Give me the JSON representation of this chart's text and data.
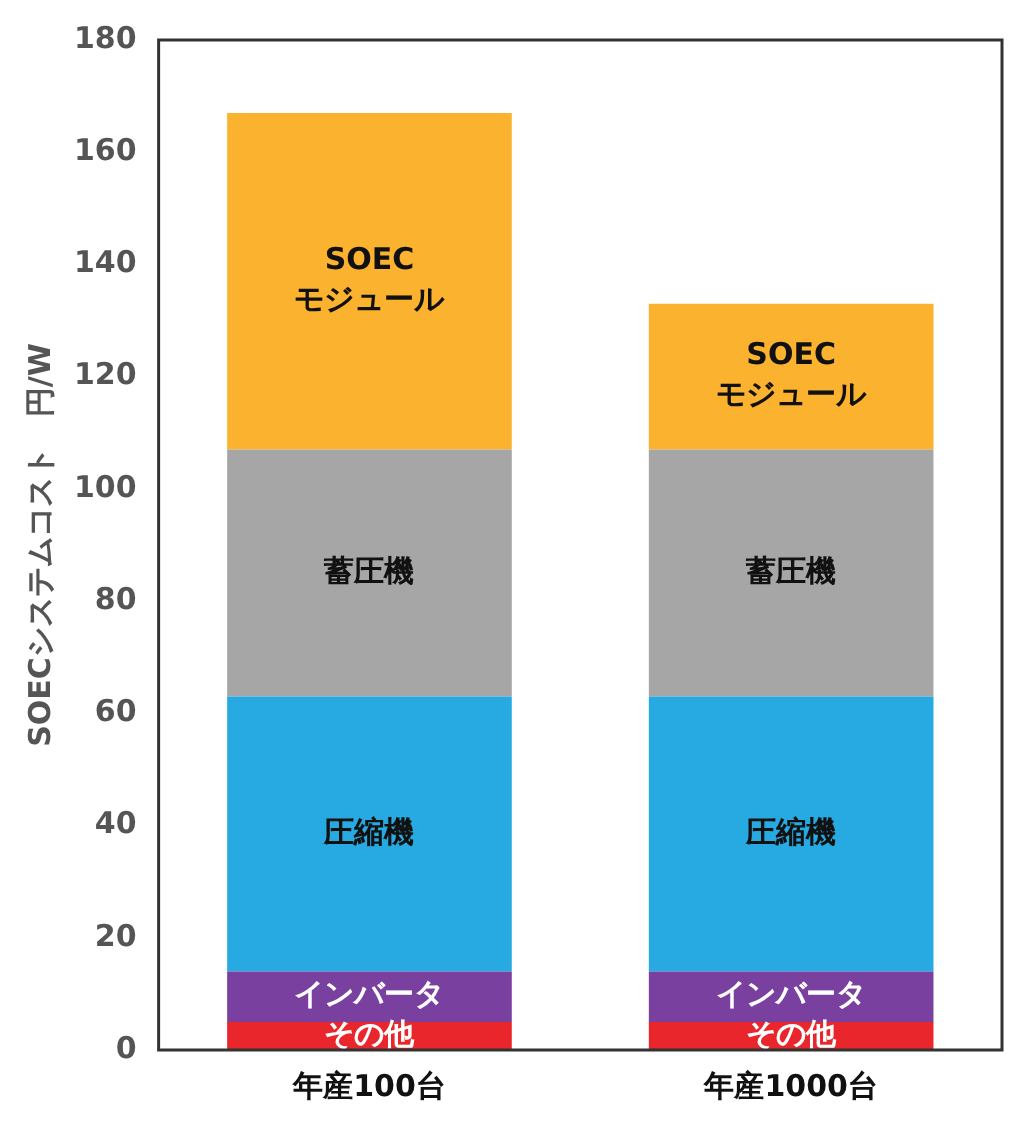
{
  "chart_data": {
    "type": "bar",
    "stacked": true,
    "ylabel": "SOECシステムコスト　円/W",
    "categories": [
      "年産100台",
      "年産1000台"
    ],
    "series": [
      {
        "name": "その他",
        "color": "#e8262b",
        "values": [
          5,
          5
        ]
      },
      {
        "name": "インバータ",
        "color": "#7a40a0",
        "values": [
          9,
          9
        ]
      },
      {
        "name": "圧縮機",
        "color": "#27aae1",
        "values": [
          49,
          49
        ]
      },
      {
        "name": "蓄圧機",
        "color": "#a6a6a6",
        "values": [
          44,
          44
        ]
      },
      {
        "name": "SOEC\nモジュール",
        "color": "#fbb22f",
        "values": [
          60,
          26
        ]
      }
    ],
    "ylim": [
      0,
      180
    ],
    "yticks": [
      0,
      20,
      40,
      60,
      80,
      100,
      120,
      140,
      160,
      180
    ],
    "grid": false,
    "legend": false
  }
}
